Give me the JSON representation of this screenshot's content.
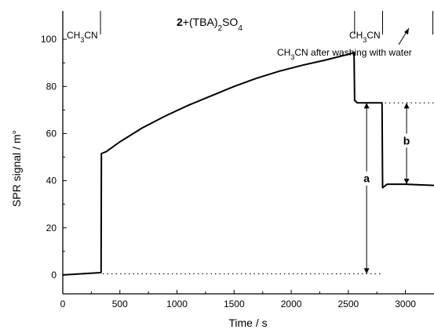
{
  "chart_data": {
    "type": "line",
    "title": "",
    "xlabel": "Time / s",
    "ylabel": "SPR signal / m°",
    "xlim": [
      0,
      3250
    ],
    "ylim": [
      -8,
      112
    ],
    "x_ticks": [
      0,
      500,
      1000,
      1500,
      2000,
      2500,
      3000
    ],
    "y_ticks": [
      0,
      20,
      40,
      60,
      80,
      100
    ],
    "grid": false,
    "series": [
      {
        "points": [
          [
            0,
            0
          ],
          [
            100,
            0.3
          ],
          [
            200,
            0.6
          ],
          [
            300,
            0.9
          ],
          [
            335,
            1.0
          ],
          [
            338,
            51.5
          ],
          [
            380,
            52.3
          ],
          [
            500,
            56.5
          ],
          [
            700,
            62.5
          ],
          [
            900,
            67.5
          ],
          [
            1100,
            72
          ],
          [
            1300,
            76
          ],
          [
            1500,
            80
          ],
          [
            1700,
            83.5
          ],
          [
            1900,
            86.5
          ],
          [
            2100,
            89
          ],
          [
            2300,
            91.2
          ],
          [
            2490,
            93.5
          ],
          [
            2550,
            94.3
          ],
          [
            2555,
            74
          ],
          [
            2580,
            73
          ],
          [
            2700,
            73
          ],
          [
            2795,
            73
          ],
          [
            2800,
            37
          ],
          [
            2840,
            38.5
          ],
          [
            3000,
            38.5
          ],
          [
            3100,
            38.3
          ],
          [
            3250,
            38
          ]
        ]
      }
    ],
    "annotations": {
      "title_text": "2+(TBA)2SO4",
      "solvent1": "CH3CN",
      "solvent2": "CH3CN",
      "solvent3": "CH3CN after washing with water",
      "label_a": "a",
      "label_b": "b"
    },
    "markers_x": [
      0,
      330,
      2555,
      2800,
      3240
    ],
    "reference_levels": [
      {
        "y": 0.5,
        "x_from": 350,
        "x_to": 2780
      },
      {
        "y": 73,
        "x_from": 2820,
        "x_to": 3250
      }
    ],
    "arrows": [
      {
        "label": "a",
        "x": 2660,
        "y_from": 0.5,
        "y_to": 73
      },
      {
        "label": "b",
        "x": 3010,
        "y_from": 38.5,
        "y_to": 73
      }
    ]
  }
}
